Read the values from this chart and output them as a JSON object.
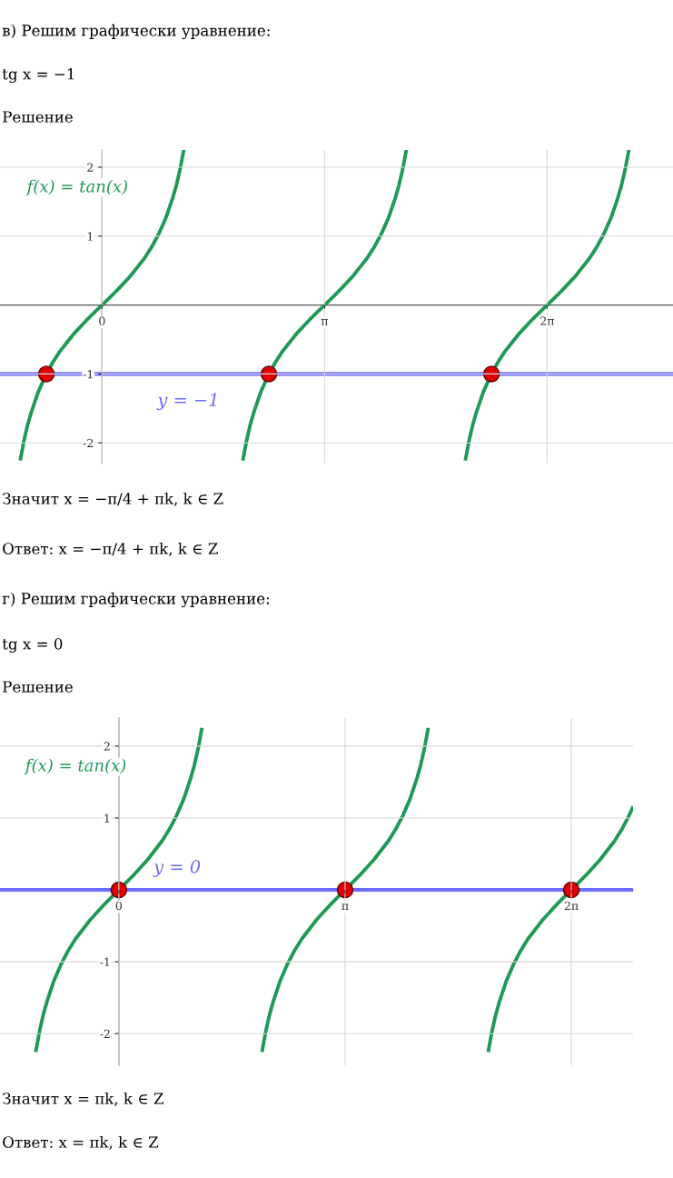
{
  "chart_data": [
    {
      "type": "line",
      "title": "в) Решим графически уравнение:",
      "subtitle": "tg x = −1",
      "annotations": [
        "Решение",
        "Значит x = −π/4 + πk, k ∈ Z",
        "Ответ: x = −π/4 + πk, k ∈ Z"
      ],
      "xlim": [
        -1.44,
        8.06
      ],
      "ylim": [
        -2.3,
        2.25
      ],
      "xticks": [
        {
          "value": 0,
          "label": "0"
        },
        {
          "value": 3.142,
          "label": "π"
        },
        {
          "value": 6.283,
          "label": "2π"
        }
      ],
      "yticks": [
        -2,
        -1,
        1,
        2
      ],
      "grid": true,
      "series": [
        {
          "name": "f(x) = tan(x)",
          "color": "#1f9955",
          "marker": "none",
          "x": [
            -1.15,
            -1.1,
            -1.05,
            -1.0,
            -0.9,
            -0.8,
            -0.7,
            -0.6,
            -0.5,
            -0.4,
            -0.3,
            -0.2,
            -0.1,
            0,
            0.1,
            0.2,
            0.3,
            0.4,
            0.5,
            0.6,
            0.7,
            0.8,
            0.9,
            1.0,
            1.05,
            1.1,
            1.15,
            1.571,
            1.992,
            2.042,
            2.092,
            2.142,
            2.242,
            2.342,
            2.442,
            2.542,
            2.642,
            2.742,
            2.842,
            2.942,
            3.042,
            3.142,
            3.242,
            3.342,
            3.442,
            3.542,
            3.642,
            3.742,
            3.842,
            3.942,
            4.042,
            4.142,
            4.192,
            4.242,
            4.292,
            4.712,
            5.133,
            5.183,
            5.233,
            5.283,
            5.383,
            5.483,
            5.583,
            5.683,
            5.783,
            5.883,
            5.983,
            6.083,
            6.183,
            6.283,
            6.383,
            6.483,
            6.583,
            6.683,
            6.783,
            6.883,
            6.983,
            7.083,
            7.183,
            7.283,
            7.333,
            7.383,
            7.433
          ],
          "values": [
            -2.23,
            -1.96,
            -1.74,
            -1.56,
            -1.26,
            -1.03,
            -0.84,
            -0.68,
            -0.55,
            -0.42,
            -0.31,
            -0.2,
            -0.1,
            0,
            0.1,
            0.2,
            0.31,
            0.42,
            0.55,
            0.68,
            0.84,
            1.03,
            1.26,
            1.56,
            1.74,
            1.96,
            2.23,
            null,
            -2.23,
            -1.96,
            -1.74,
            -1.56,
            -1.26,
            -1.03,
            -0.84,
            -0.68,
            -0.55,
            -0.42,
            -0.31,
            -0.2,
            -0.1,
            0,
            0.1,
            0.2,
            0.31,
            0.42,
            0.55,
            0.68,
            0.84,
            1.03,
            1.26,
            1.56,
            1.74,
            1.96,
            2.23,
            null,
            -2.23,
            -1.96,
            -1.74,
            -1.56,
            -1.26,
            -1.03,
            -0.84,
            -0.68,
            -0.55,
            -0.42,
            -0.31,
            -0.2,
            -0.1,
            0,
            0.1,
            0.2,
            0.31,
            0.42,
            0.55,
            0.68,
            0.84,
            1.03,
            1.26,
            1.56,
            1.74,
            1.96,
            2.23
          ]
        },
        {
          "type": "scatter",
          "color": "#e00000",
          "marker": "circle",
          "x": [
            -0.785,
            2.356,
            5.498
          ],
          "values": [
            -1,
            -1,
            -1
          ]
        }
      ],
      "ref_lines": [
        {
          "axis": "y",
          "value": -1,
          "label": "y = −1",
          "color": "#6b6bff"
        }
      ]
    },
    {
      "type": "line",
      "title": "г) Решим графически уравнение:",
      "subtitle": "tg x = 0",
      "annotations": [
        "Решение",
        "Значит x = πk, k ∈ Z",
        "Ответ: x = πk, k ∈ Z"
      ],
      "xlim": [
        -1.65,
        7.14
      ],
      "ylim": [
        -2.44,
        2.39
      ],
      "xticks": [
        {
          "value": 0,
          "label": "0"
        },
        {
          "value": 3.142,
          "label": "π"
        },
        {
          "value": 6.283,
          "label": "2π"
        }
      ],
      "yticks": [
        -2,
        -1,
        1,
        2
      ],
      "grid": true,
      "series": [
        {
          "name": "f(x) = tan(x)",
          "color": "#1f9955",
          "marker": "none",
          "x": [
            -1.15,
            -1.1,
            -1.05,
            -1.0,
            -0.9,
            -0.8,
            -0.7,
            -0.6,
            -0.5,
            -0.4,
            -0.3,
            -0.2,
            -0.1,
            0,
            0.1,
            0.2,
            0.3,
            0.4,
            0.5,
            0.6,
            0.7,
            0.8,
            0.9,
            1.0,
            1.05,
            1.1,
            1.15,
            1.571,
            1.992,
            2.042,
            2.092,
            2.142,
            2.242,
            2.342,
            2.442,
            2.542,
            2.642,
            2.742,
            2.842,
            2.942,
            3.042,
            3.142,
            3.242,
            3.342,
            3.442,
            3.542,
            3.642,
            3.742,
            3.842,
            3.942,
            4.042,
            4.142,
            4.192,
            4.242,
            4.292,
            4.712,
            5.133,
            5.183,
            5.233,
            5.283,
            5.383,
            5.483,
            5.583,
            5.683,
            5.783,
            5.883,
            5.983,
            6.083,
            6.183,
            6.283,
            6.383,
            6.483,
            6.583,
            6.683,
            6.783,
            6.883,
            6.983,
            7.083,
            7.133
          ],
          "values": [
            -2.23,
            -1.96,
            -1.74,
            -1.56,
            -1.26,
            -1.03,
            -0.84,
            -0.68,
            -0.55,
            -0.42,
            -0.31,
            -0.2,
            -0.1,
            0,
            0.1,
            0.2,
            0.31,
            0.42,
            0.55,
            0.68,
            0.84,
            1.03,
            1.26,
            1.56,
            1.74,
            1.96,
            2.23,
            null,
            -2.23,
            -1.96,
            -1.74,
            -1.56,
            -1.26,
            -1.03,
            -0.84,
            -0.68,
            -0.55,
            -0.42,
            -0.31,
            -0.2,
            -0.1,
            0,
            0.1,
            0.2,
            0.31,
            0.42,
            0.55,
            0.68,
            0.84,
            1.03,
            1.26,
            1.56,
            1.74,
            1.96,
            2.23,
            null,
            -2.23,
            -1.96,
            -1.74,
            -1.56,
            -1.26,
            -1.03,
            -0.84,
            -0.68,
            -0.55,
            -0.42,
            -0.31,
            -0.2,
            -0.1,
            0,
            0.1,
            0.2,
            0.31,
            0.42,
            0.55,
            0.68,
            0.84,
            1.03,
            1.14
          ]
        },
        {
          "type": "scatter",
          "color": "#e00000",
          "marker": "circle",
          "x": [
            0,
            3.142,
            6.283
          ],
          "values": [
            0,
            0,
            0
          ]
        }
      ],
      "ref_lines": [
        {
          "axis": "y",
          "value": 0,
          "label": "y = 0",
          "color": "#6b6bff"
        }
      ]
    }
  ]
}
